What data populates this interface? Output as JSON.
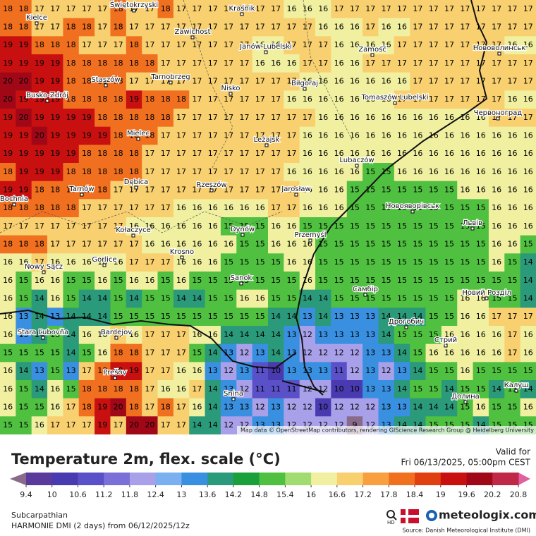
{
  "map": {
    "attribution": "Map data © OpenStreetMap contributors, rendering GIScience Research Group @ Heidelberg University",
    "cities": [
      "Kielce",
      "Świętokrzyski",
      "Kraśnik",
      "Zawichost",
      "Janów Lubelski",
      "Zamość",
      "Нововолинськ",
      "Staszów",
      "Tarnobrzeg",
      "Nisko",
      "Biłgoraj",
      "Tomaszów Lubelski",
      "Червоноград",
      "Busko-Zdrój",
      "Mielec",
      "Leżajsk",
      "Lubaczów",
      "Tarnów",
      "Dębica",
      "Rzeszów",
      "Jarosław",
      "Новояворівськ",
      "Bochnia",
      "Львів",
      "Dynów",
      "Przemyśl",
      "Kołaczyce",
      "Krosno",
      "Gorlice",
      "Nowy Sącz",
      "Sanok",
      "Самбір",
      "Новий Розділ",
      "Дрогобич",
      "Стрий",
      "Stara Ľubovňa",
      "Bardejov",
      "Prešov",
      "Snina",
      "Калуш",
      "Долина"
    ],
    "grid": [
      [
        18,
        18,
        17,
        17,
        17,
        17,
        17,
        18,
        17,
        17,
        18,
        17,
        17,
        17,
        17,
        17,
        17,
        17,
        16,
        16,
        16,
        17,
        17,
        17,
        17,
        17,
        17,
        17,
        17,
        17,
        17,
        17,
        17,
        17
      ],
      [
        18,
        18,
        17,
        17,
        18,
        18,
        17,
        18,
        17,
        17,
        17,
        17,
        17,
        17,
        17,
        17,
        17,
        17,
        17,
        17,
        16,
        16,
        16,
        17,
        16,
        16,
        17,
        17,
        17,
        17,
        17,
        17,
        17,
        17
      ],
      [
        19,
        19,
        18,
        18,
        18,
        17,
        17,
        17,
        18,
        17,
        17,
        17,
        17,
        17,
        17,
        17,
        16,
        16,
        17,
        17,
        17,
        16,
        16,
        16,
        16,
        17,
        17,
        17,
        17,
        17,
        17,
        17,
        16,
        16
      ],
      [
        19,
        19,
        19,
        19,
        18,
        18,
        18,
        18,
        18,
        18,
        17,
        17,
        17,
        17,
        17,
        17,
        16,
        16,
        16,
        17,
        17,
        16,
        16,
        17,
        17,
        17,
        17,
        17,
        17,
        17,
        17,
        17,
        17,
        17
      ],
      [
        20,
        20,
        19,
        19,
        18,
        18,
        18,
        18,
        17,
        17,
        17,
        17,
        17,
        17,
        17,
        17,
        17,
        17,
        17,
        16,
        16,
        16,
        16,
        16,
        16,
        16,
        17,
        17,
        17,
        17,
        17,
        17,
        17,
        17
      ],
      [
        20,
        19,
        19,
        19,
        18,
        18,
        18,
        18,
        19,
        18,
        18,
        18,
        17,
        17,
        17,
        17,
        17,
        17,
        16,
        16,
        16,
        16,
        16,
        16,
        16,
        17,
        17,
        17,
        17,
        17,
        17,
        17,
        16,
        16
      ],
      [
        19,
        20,
        19,
        19,
        19,
        19,
        18,
        18,
        18,
        18,
        18,
        17,
        17,
        17,
        17,
        17,
        17,
        17,
        17,
        17,
        16,
        16,
        16,
        16,
        16,
        16,
        16,
        16,
        16,
        16,
        16,
        17,
        17,
        17
      ],
      [
        19,
        19,
        20,
        19,
        19,
        19,
        19,
        18,
        18,
        18,
        17,
        17,
        17,
        17,
        17,
        17,
        17,
        17,
        17,
        16,
        16,
        16,
        16,
        16,
        16,
        16,
        16,
        16,
        16,
        16,
        16,
        16,
        16,
        16
      ],
      [
        19,
        19,
        19,
        19,
        19,
        18,
        18,
        18,
        18,
        17,
        17,
        17,
        17,
        17,
        17,
        17,
        17,
        17,
        17,
        16,
        16,
        16,
        16,
        16,
        16,
        16,
        16,
        16,
        16,
        16,
        16,
        16,
        16,
        16
      ],
      [
        18,
        19,
        19,
        19,
        18,
        18,
        18,
        18,
        18,
        17,
        17,
        17,
        17,
        17,
        17,
        17,
        17,
        17,
        16,
        16,
        16,
        16,
        16,
        15,
        15,
        16,
        16,
        16,
        16,
        16,
        16,
        16,
        16,
        16
      ],
      [
        19,
        19,
        18,
        18,
        18,
        18,
        18,
        17,
        17,
        17,
        17,
        17,
        17,
        17,
        17,
        17,
        17,
        17,
        17,
        16,
        16,
        16,
        15,
        15,
        15,
        15,
        15,
        15,
        15,
        16,
        16,
        16,
        16,
        16
      ],
      [
        18,
        18,
        18,
        18,
        18,
        17,
        17,
        17,
        17,
        17,
        17,
        16,
        16,
        16,
        16,
        16,
        16,
        17,
        17,
        16,
        16,
        16,
        15,
        15,
        15,
        15,
        15,
        15,
        15,
        15,
        15,
        16,
        16,
        16
      ],
      [
        17,
        17,
        17,
        17,
        17,
        17,
        17,
        17,
        16,
        16,
        16,
        16,
        16,
        16,
        15,
        15,
        15,
        16,
        16,
        15,
        15,
        15,
        15,
        15,
        15,
        15,
        15,
        15,
        15,
        15,
        15,
        16,
        16,
        16
      ],
      [
        18,
        18,
        18,
        17,
        17,
        17,
        17,
        17,
        17,
        16,
        16,
        16,
        16,
        16,
        16,
        15,
        15,
        16,
        16,
        16,
        15,
        15,
        15,
        15,
        15,
        15,
        15,
        15,
        15,
        15,
        15,
        16,
        16,
        15
      ],
      [
        16,
        16,
        17,
        16,
        16,
        16,
        16,
        16,
        17,
        17,
        17,
        16,
        16,
        16,
        15,
        15,
        15,
        15,
        16,
        16,
        15,
        15,
        15,
        15,
        15,
        15,
        15,
        15,
        15,
        15,
        15,
        16,
        15,
        14
      ],
      [
        16,
        15,
        16,
        16,
        15,
        15,
        16,
        15,
        16,
        16,
        15,
        16,
        15,
        15,
        15,
        15,
        15,
        15,
        15,
        16,
        15,
        15,
        15,
        15,
        15,
        15,
        15,
        15,
        15,
        15,
        15,
        15,
        15,
        14
      ],
      [
        16,
        15,
        14,
        16,
        15,
        14,
        14,
        15,
        14,
        15,
        15,
        14,
        14,
        15,
        15,
        16,
        16,
        15,
        15,
        14,
        14,
        15,
        15,
        15,
        15,
        15,
        15,
        15,
        15,
        16,
        16,
        15,
        15,
        14
      ],
      [
        16,
        13,
        14,
        13,
        14,
        14,
        14,
        15,
        15,
        15,
        15,
        15,
        15,
        15,
        15,
        15,
        15,
        14,
        14,
        13,
        14,
        13,
        13,
        13,
        14,
        14,
        14,
        15,
        15,
        16,
        16,
        17,
        17,
        17
      ],
      [
        16,
        13,
        14,
        15,
        14,
        16,
        16,
        17,
        16,
        17,
        17,
        17,
        16,
        16,
        14,
        14,
        14,
        14,
        13,
        12,
        13,
        13,
        13,
        13,
        14,
        15,
        15,
        15,
        16,
        16,
        16,
        16,
        17,
        16
      ],
      [
        15,
        15,
        15,
        15,
        14,
        15,
        16,
        18,
        18,
        17,
        17,
        17,
        15,
        14,
        13,
        12,
        13,
        14,
        13,
        12,
        12,
        12,
        12,
        13,
        13,
        14,
        15,
        16,
        16,
        16,
        16,
        16,
        17,
        16
      ],
      [
        16,
        14,
        13,
        15,
        13,
        17,
        18,
        19,
        19,
        17,
        17,
        16,
        16,
        13,
        12,
        13,
        11,
        10,
        13,
        13,
        13,
        11,
        12,
        13,
        12,
        13,
        14,
        15,
        15,
        16,
        15,
        15,
        15,
        15
      ],
      [
        16,
        15,
        14,
        16,
        15,
        18,
        18,
        18,
        18,
        17,
        16,
        16,
        17,
        14,
        13,
        12,
        11,
        11,
        11,
        12,
        12,
        10,
        10,
        13,
        13,
        14,
        15,
        15,
        14,
        15,
        15,
        14,
        15,
        14
      ],
      [
        16,
        15,
        15,
        16,
        17,
        18,
        19,
        20,
        18,
        17,
        18,
        17,
        16,
        14,
        13,
        13,
        12,
        13,
        12,
        12,
        10,
        12,
        12,
        12,
        13,
        13,
        14,
        14,
        14,
        15,
        16,
        15,
        15,
        16
      ],
      [
        15,
        15,
        16,
        17,
        17,
        17,
        19,
        17,
        20,
        20,
        17,
        17,
        14,
        14,
        12,
        12,
        13,
        13,
        12,
        12,
        12,
        12,
        9,
        12,
        13,
        14,
        14,
        15,
        15,
        15,
        14,
        15,
        15,
        15
      ]
    ]
  },
  "legend": {
    "title": "Temperature 2m, flex. scale (°C)",
    "ticks": [
      9.4,
      10,
      10.6,
      11.2,
      11.8,
      12.4,
      13,
      13.6,
      14.2,
      14.8,
      15.4,
      16,
      16.6,
      17.2,
      17.8,
      18.4,
      19,
      19.6,
      20.2,
      20.8
    ],
    "colors": [
      "#8a6a8a",
      "#5a3a9a",
      "#4a3ab0",
      "#5a50c8",
      "#7a70d8",
      "#a8a0e8",
      "#7ab0f0",
      "#3a90e0",
      "#2a9a7a",
      "#1aa03a",
      "#50c040",
      "#a0dc70",
      "#f0f0a0",
      "#f8d070",
      "#f8a040",
      "#f07020",
      "#e04010",
      "#c81010",
      "#a00818",
      "#c02848",
      "#e060a0"
    ]
  },
  "valid_label": "Valid for",
  "valid_time": "Fri 06/13/2025, 05:00pm CEST",
  "region": "Subcarpathian",
  "model": "HARMONIE DMI (2 days)  from  06/12/2025/12z",
  "hd": "HD",
  "brand": "meteologix.com",
  "source": "Source: Danish Meteorological Institute (DMI)"
}
